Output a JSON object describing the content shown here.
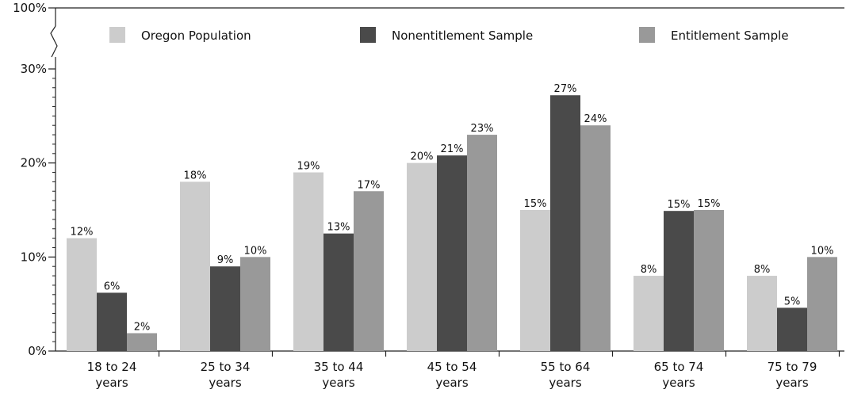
{
  "chart_data": {
    "type": "bar",
    "title": "",
    "xlabel": "",
    "ylabel": "",
    "ylim": [
      0,
      30
    ],
    "axis_break": {
      "top_label": "100%"
    },
    "y_ticks": [
      {
        "value": 0,
        "label": "0%"
      },
      {
        "value": 10,
        "label": "10%"
      },
      {
        "value": 20,
        "label": "20%"
      },
      {
        "value": 30,
        "label": "30%"
      }
    ],
    "categories": [
      [
        "18 to 24",
        "years"
      ],
      [
        "25 to 34",
        "years"
      ],
      [
        "35 to 44",
        "years"
      ],
      [
        "45 to 54",
        "years"
      ],
      [
        "55 to 64",
        "years"
      ],
      [
        "65 to 74",
        "years"
      ],
      [
        "75 to 79",
        "years"
      ]
    ],
    "series": [
      {
        "name": "Oregon Population",
        "color": "#cccccc",
        "values": [
          12,
          18,
          19,
          20,
          15,
          8,
          8
        ],
        "labels": [
          "12%",
          "18%",
          "19%",
          "20%",
          "15%",
          "8%",
          "8%"
        ]
      },
      {
        "name": "Nonentitlement Sample",
        "color": "#4a4a4a",
        "values": [
          6.2,
          9,
          12.5,
          20.8,
          27.2,
          14.9,
          4.6
        ],
        "labels": [
          "6%",
          "9%",
          "13%",
          "21%",
          "27%",
          "15%",
          "5%"
        ]
      },
      {
        "name": "Entitlement Sample",
        "color": "#999999",
        "values": [
          1.9,
          10,
          17,
          23,
          24,
          15,
          10
        ],
        "labels": [
          "2%",
          "10%",
          "17%",
          "23%",
          "24%",
          "15%",
          "10%"
        ]
      }
    ],
    "grid": false,
    "legend_position": "top"
  }
}
